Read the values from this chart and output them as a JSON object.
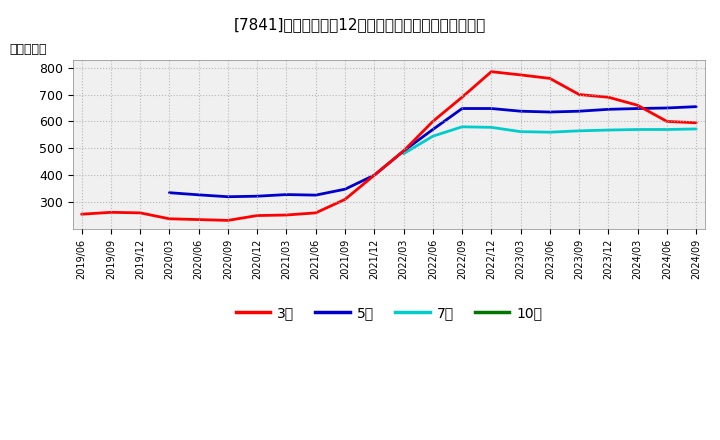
{
  "title": "[7841]　当期純利益12か月移動合計の標準偏差の推移",
  "ylabel": "（百万円）",
  "ylim": [
    200,
    830
  ],
  "yticks": [
    300,
    400,
    500,
    600,
    700,
    800
  ],
  "background_color": "#ffffff",
  "grid_color": "#aaaaaa",
  "x_labels": [
    "2019/06",
    "2019/09",
    "2019/12",
    "2020/03",
    "2020/06",
    "2020/09",
    "2020/12",
    "2021/03",
    "2021/06",
    "2021/09",
    "2021/12",
    "2022/03",
    "2022/06",
    "2022/09",
    "2022/12",
    "2023/03",
    "2023/06",
    "2023/09",
    "2023/12",
    "2024/03",
    "2024/06",
    "2024/09"
  ],
  "series": {
    "3年": {
      "color": "#ff0000",
      "values": [
        255,
        262,
        260,
        238,
        235,
        232,
        250,
        252,
        260,
        310,
        400,
        490,
        600,
        690,
        785,
        773,
        760,
        700,
        690,
        660,
        600,
        595
      ]
    },
    "5年": {
      "color": "#0000cc",
      "values": [
        null,
        null,
        null,
        335,
        327,
        320,
        322,
        328,
        326,
        348,
        400,
        490,
        570,
        648,
        648,
        638,
        635,
        638,
        645,
        648,
        650,
        655
      ]
    },
    "7年": {
      "color": "#00cccc",
      "values": [
        null,
        null,
        null,
        null,
        null,
        null,
        null,
        null,
        null,
        null,
        null,
        480,
        545,
        580,
        578,
        562,
        560,
        565,
        568,
        570,
        570,
        572
      ]
    },
    "10年": {
      "color": "#007700",
      "values": [
        null,
        null,
        null,
        null,
        null,
        null,
        null,
        null,
        null,
        null,
        null,
        null,
        null,
        null,
        null,
        null,
        null,
        null,
        null,
        null,
        null,
        null
      ]
    }
  },
  "legend": {
    "labels": [
      "3年",
      "5年",
      "7年",
      "10年"
    ],
    "colors": [
      "#ff0000",
      "#0000cc",
      "#00cccc",
      "#007700"
    ]
  }
}
